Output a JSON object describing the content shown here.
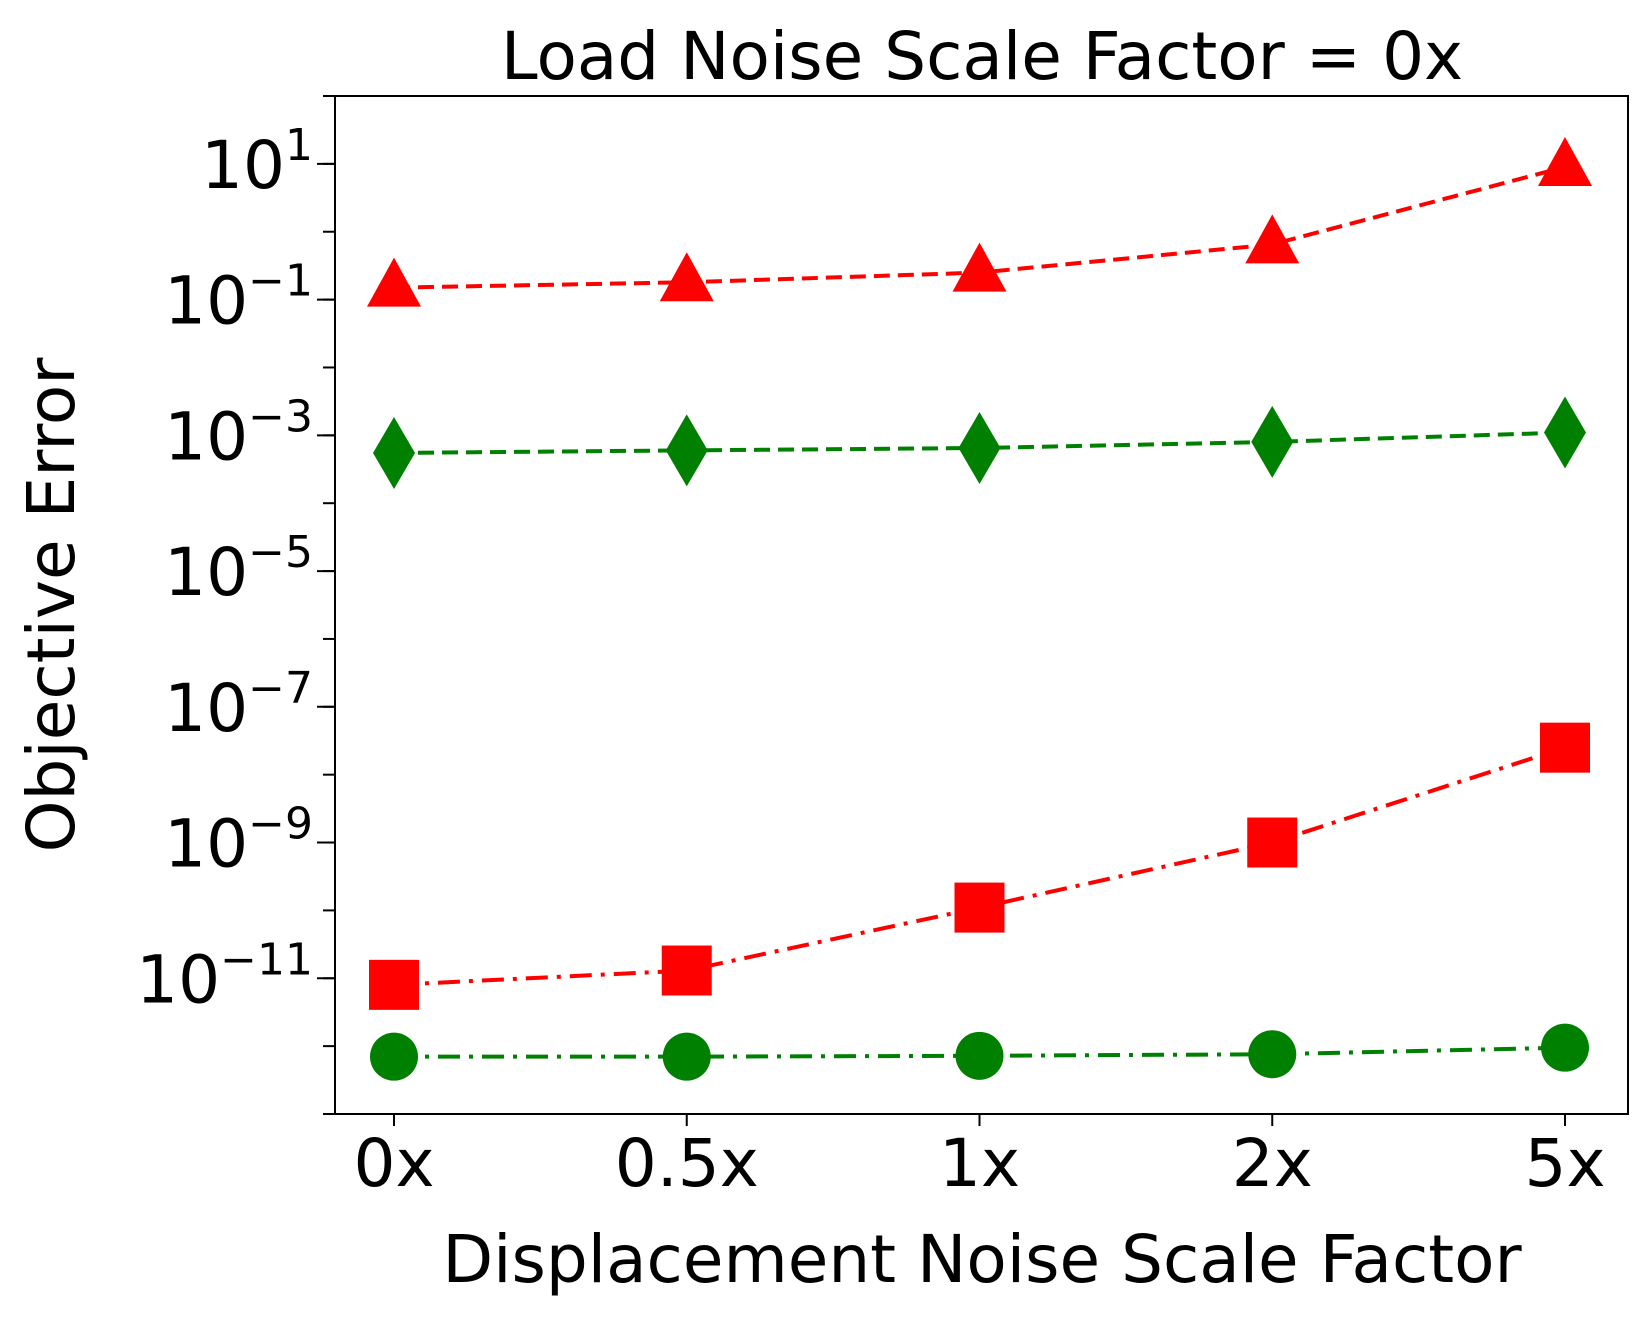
{
  "chart_data": {
    "type": "line",
    "title": "Load Noise Scale Factor = 0x",
    "xlabel": "Displacement Noise Scale Factor",
    "ylabel": "Objective Error",
    "yscale": "log",
    "ylim": [
      1e-13,
      100.0
    ],
    "categories": [
      "0x",
      "0.5x",
      "1x",
      "2x",
      "5x"
    ],
    "y_ticks": [
      {
        "base": "10",
        "exp": "1",
        "value": 10
      },
      {
        "base": "10",
        "exp": "−1",
        "value": 0.1
      },
      {
        "base": "10",
        "exp": "−3",
        "value": 0.001
      },
      {
        "base": "10",
        "exp": "−5",
        "value": 1e-05
      },
      {
        "base": "10",
        "exp": "−7",
        "value": 1e-07
      },
      {
        "base": "10",
        "exp": "−9",
        "value": 1e-09
      },
      {
        "base": "10",
        "exp": "−11",
        "value": 1e-11
      }
    ],
    "grid": false,
    "series": [
      {
        "name": "red-triangle-dashed",
        "color": "#ff0000",
        "marker": "triangle",
        "linestyle": "dashed",
        "values": [
          0.15,
          0.18,
          0.25,
          0.65,
          9.0
        ]
      },
      {
        "name": "green-diamond-dashed",
        "color": "#008000",
        "marker": "diamond",
        "linestyle": "dashed",
        "values": [
          0.00055,
          0.0006,
          0.00065,
          0.0008,
          0.0011
        ]
      },
      {
        "name": "red-square-dashdot",
        "color": "#ff0000",
        "marker": "square",
        "linestyle": "dashdot",
        "values": [
          8e-12,
          1.3e-11,
          1.1e-10,
          1e-09,
          2.5e-08
        ]
      },
      {
        "name": "green-circle-dashdot",
        "color": "#008000",
        "marker": "circle",
        "linestyle": "dashdot",
        "values": [
          7e-13,
          7e-13,
          7.2e-13,
          7.6e-13,
          9.5e-13
        ]
      }
    ]
  }
}
